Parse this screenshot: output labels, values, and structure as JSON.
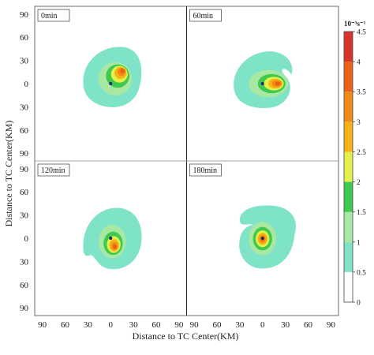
{
  "chart_data": {
    "type": "contour",
    "xlabel": "Distance to TC Center(KM)",
    "ylabel": "Distance to TC Center(KM)",
    "x_ticks": [
      "90",
      "60",
      "30",
      "0",
      "30",
      "60",
      "90"
    ],
    "y_ticks": [
      "90",
      "60",
      "30",
      "0",
      "30",
      "60",
      "90"
    ],
    "xlim": [
      -100,
      100
    ],
    "ylim": [
      -100,
      100
    ],
    "colorbar": {
      "unit": "10⁻³s⁻¹",
      "ticks": [
        "0",
        "0.5",
        "1",
        "1.5",
        "2",
        "2.5",
        "3",
        "3.5",
        "4",
        "4.5"
      ],
      "levels": [
        0,
        0.5,
        1,
        1.5,
        2,
        2.5,
        3,
        3.5,
        4,
        4.5
      ],
      "colors": [
        "#ffffff",
        "#7fe3c8",
        "#a8e8a2",
        "#3fc94f",
        "#e3f24a",
        "#f6b216",
        "#f08a14",
        "#ea6117",
        "#d9342a"
      ]
    },
    "panels": [
      {
        "label": "0min",
        "center_dot": [
          0,
          0
        ],
        "max_center": [
          17,
          18
        ],
        "max_value": 4.0
      },
      {
        "label": "60min",
        "center_dot": [
          0,
          0
        ],
        "max_center": [
          22,
          0
        ],
        "max_value": 4.0
      },
      {
        "label": "120min",
        "center_dot": [
          0,
          0
        ],
        "max_center": [
          6,
          -12
        ],
        "max_value": 4.0
      },
      {
        "label": "180min",
        "center_dot": [
          0,
          0
        ],
        "max_center": [
          0,
          -1
        ],
        "max_value": 4.0
      }
    ]
  }
}
